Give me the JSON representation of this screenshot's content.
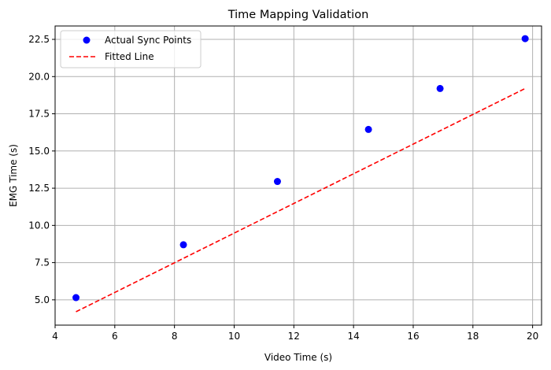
{
  "chart_data": {
    "type": "scatter",
    "title": "Time Mapping Validation",
    "xlabel": "Video Time (s)",
    "ylabel": "EMG Time (s)",
    "xlim": [
      4.0,
      20.3
    ],
    "ylim": [
      3.3,
      23.4
    ],
    "xticks": [
      4,
      6,
      8,
      10,
      12,
      14,
      16,
      18,
      20
    ],
    "yticks": [
      5.0,
      7.5,
      10.0,
      12.5,
      15.0,
      17.5,
      20.0,
      22.5
    ],
    "xtick_labels": [
      "4",
      "6",
      "8",
      "10",
      "12",
      "14",
      "16",
      "18",
      "20"
    ],
    "ytick_labels": [
      "5.0",
      "7.5",
      "10.0",
      "12.5",
      "15.0",
      "17.5",
      "20.0",
      "22.5"
    ],
    "grid": true,
    "legend_position": "top-left",
    "series": [
      {
        "name": "Actual Sync Points",
        "kind": "points",
        "color": "#0000ff",
        "x": [
          4.7,
          8.3,
          11.45,
          14.5,
          16.9,
          19.75
        ],
        "y": [
          5.15,
          8.7,
          12.95,
          16.45,
          19.2,
          22.55
        ]
      },
      {
        "name": "Fitted Line",
        "kind": "dashed-line",
        "color": "#ff0000",
        "x": [
          4.7,
          19.75
        ],
        "y": [
          4.2,
          19.2
        ]
      }
    ]
  }
}
